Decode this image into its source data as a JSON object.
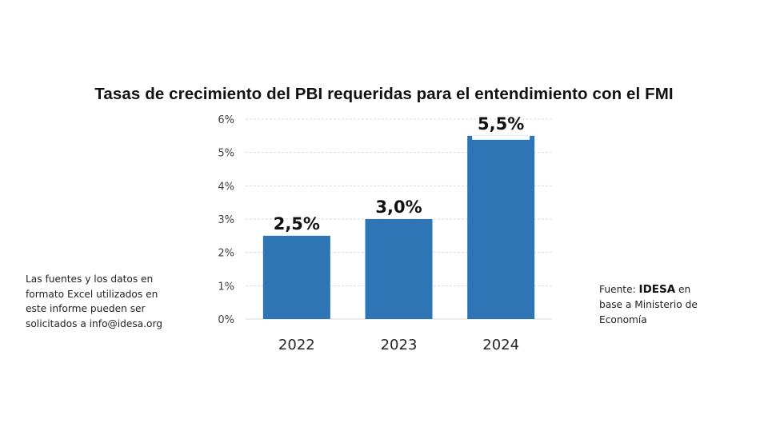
{
  "chart_data": {
    "type": "bar",
    "title": "Tasas de crecimiento del PBI requeridas para el entendimiento con el FMI",
    "categories": [
      "2022",
      "2023",
      "2024"
    ],
    "values": [
      2.5,
      3.0,
      5.5
    ],
    "data_labels": [
      "2,5%",
      "3,0%",
      "5,5%"
    ],
    "xlabel": "",
    "ylabel": "",
    "ylim": [
      0,
      6
    ],
    "yticks": [
      0,
      1,
      2,
      3,
      4,
      5,
      6
    ],
    "ytick_labels": [
      "0%",
      "1%",
      "2%",
      "3%",
      "4%",
      "5%",
      "6%"
    ],
    "grid": true,
    "legend": "none",
    "bar_color": "#2e75b6"
  },
  "notes": {
    "left_lines": [
      "Las fuentes y los datos en",
      "formato Excel utilizados en",
      "este informe pueden ser",
      "solicitados a info@idesa.org"
    ],
    "source_prefix": "Fuente: ",
    "source_name": "IDESA",
    "source_suffix": " en",
    "source_line2": "base a Ministerio de",
    "source_line3": "Economía"
  }
}
